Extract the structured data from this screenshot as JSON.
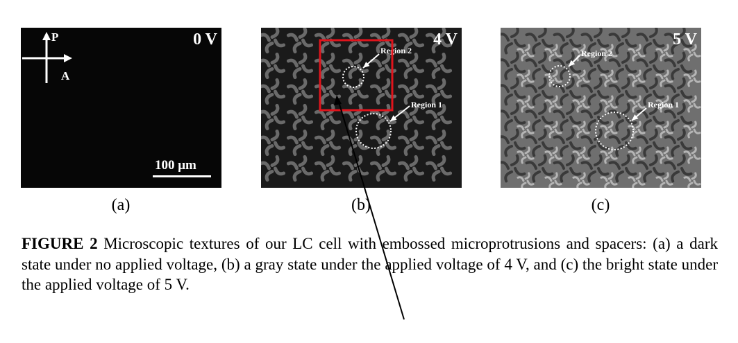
{
  "panels": [
    {
      "voltage": "0 V",
      "label": "(a)",
      "polarizer": "P",
      "analyzer": "A",
      "scale_bar": "100 μm"
    },
    {
      "voltage": "4 V",
      "label": "(b)",
      "regions": [
        "Region 2",
        "Region 1"
      ]
    },
    {
      "voltage": "5 V",
      "label": "(c)",
      "regions": [
        "Region 2",
        "Region 1"
      ]
    }
  ],
  "caption": {
    "figure_label": "FIGURE 2",
    "text": " Microscopic textures of our LC cell with embossed microprotrusions and spacers: (a) a dark state under no applied voltage, (b) a gray state under the applied voltage of 4 V, and (c) the bright state under the applied voltage of 5 V."
  },
  "annotations": {
    "highlight_box_color": "#e0141c",
    "pointer_arrow_color": "#000000"
  }
}
